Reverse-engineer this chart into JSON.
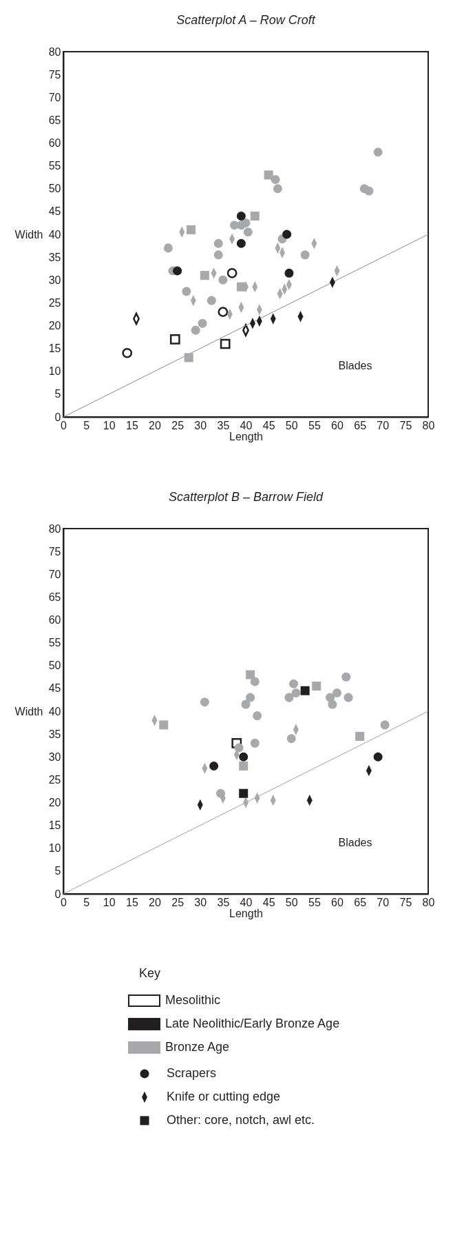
{
  "chart_data": [
    {
      "type": "scatter",
      "title": "Scatterplot A – Row Croft",
      "xlabel": "Length",
      "ylabel": "Width",
      "xlim": [
        0,
        80
      ],
      "ylim": [
        0,
        80
      ],
      "xticks": [
        0,
        5,
        10,
        15,
        20,
        25,
        30,
        35,
        40,
        45,
        50,
        55,
        60,
        65,
        70,
        75,
        80
      ],
      "yticks": [
        0,
        5,
        10,
        15,
        20,
        25,
        30,
        35,
        40,
        45,
        50,
        55,
        60,
        65,
        70,
        75,
        80
      ],
      "series": [
        {
          "type": "line",
          "color": "#8a8a8a",
          "x": [
            0,
            80
          ],
          "values": [
            0,
            40
          ]
        },
        {
          "marker": "circle",
          "color": "#a7a9ac",
          "x": [
            23,
            24,
            35,
            27,
            32.5,
            30.5,
            29,
            34,
            34,
            37.5,
            39,
            40,
            40.5,
            69,
            46.5,
            47,
            66,
            67,
            48,
            53
          ],
          "values": [
            37,
            32,
            30,
            27.5,
            25.5,
            20.5,
            19,
            38,
            35.5,
            42,
            42,
            42.5,
            40.5,
            58,
            52,
            50,
            50,
            49.5,
            39,
            35.5
          ]
        },
        {
          "marker": "diamond",
          "color": "#a7a9ac",
          "x": [
            26,
            33,
            28.5,
            36.5,
            39,
            37,
            47,
            48,
            55,
            60,
            40,
            42,
            47.5,
            48.5,
            49.5,
            43
          ],
          "values": [
            40.5,
            31.5,
            25.5,
            22.5,
            24,
            39,
            37,
            36,
            38,
            32,
            28.5,
            28.5,
            27,
            28,
            29,
            23.5
          ]
        },
        {
          "marker": "square",
          "color": "#a7a9ac",
          "x": [
            28,
            31,
            27.5,
            39,
            45,
            42
          ],
          "values": [
            41,
            31,
            13,
            28.5,
            53,
            44
          ]
        },
        {
          "marker": "circle",
          "color": "#231f20",
          "x": [
            25,
            39,
            39,
            49,
            49.5
          ],
          "values": [
            32,
            38,
            44,
            40,
            31.5
          ]
        },
        {
          "marker": "diamond",
          "color": "#231f20",
          "x": [
            59,
            41.5,
            43,
            46,
            52
          ],
          "values": [
            29.5,
            20.5,
            21,
            21.5,
            22
          ]
        },
        {
          "marker": "circle",
          "color": "#ffffff",
          "x": [
            14,
            37,
            35
          ],
          "values": [
            14,
            31.5,
            23
          ]
        },
        {
          "marker": "diamond",
          "color": "#ffffff",
          "x": [
            16,
            40
          ],
          "values": [
            21.5,
            19
          ]
        },
        {
          "marker": "square",
          "color": "#ffffff",
          "x": [
            24.5,
            35.5
          ],
          "values": [
            17,
            16
          ]
        }
      ],
      "annotations": [
        "Blades"
      ]
    },
    {
      "type": "scatter",
      "title": "Scatterplot B – Barrow Field",
      "xlabel": "Length",
      "ylabel": "Width",
      "xlim": [
        0,
        80
      ],
      "ylim": [
        0,
        80
      ],
      "xticks": [
        0,
        5,
        10,
        15,
        20,
        25,
        30,
        35,
        40,
        45,
        50,
        55,
        60,
        65,
        70,
        75,
        80
      ],
      "yticks": [
        0,
        5,
        10,
        15,
        20,
        25,
        30,
        35,
        40,
        45,
        50,
        55,
        60,
        65,
        70,
        75,
        80
      ],
      "series": [
        {
          "type": "line",
          "color": "#a0a0a0",
          "x": [
            0,
            80
          ],
          "values": [
            0,
            40
          ]
        },
        {
          "marker": "circle",
          "color": "#a7a9ac",
          "x": [
            31,
            38.5,
            34.5,
            42,
            41,
            40,
            42.5,
            50.5,
            51,
            49.5,
            62,
            60,
            58.5,
            59,
            62.5,
            50,
            42,
            70.5
          ],
          "values": [
            42,
            32,
            22,
            46.5,
            43,
            41.5,
            39,
            46,
            44,
            43,
            47.5,
            44,
            43,
            41.5,
            43,
            34,
            33,
            37
          ]
        },
        {
          "marker": "diamond",
          "color": "#a7a9ac",
          "x": [
            20,
            38,
            31,
            35,
            51,
            40,
            42.5,
            46
          ],
          "values": [
            38,
            30.5,
            27.5,
            21,
            36,
            20,
            21,
            20.5
          ]
        },
        {
          "marker": "square",
          "color": "#a7a9ac",
          "x": [
            22,
            41,
            55.5,
            65,
            39.5
          ],
          "values": [
            37,
            48,
            45.5,
            34.5,
            28
          ]
        },
        {
          "marker": "circle",
          "color": "#231f20",
          "x": [
            39.5,
            33,
            69
          ],
          "values": [
            30,
            28,
            30
          ]
        },
        {
          "marker": "diamond",
          "color": "#231f20",
          "x": [
            30,
            67,
            54
          ],
          "values": [
            19.5,
            27,
            20.5
          ]
        },
        {
          "marker": "square",
          "color": "#231f20",
          "x": [
            53,
            39.5
          ],
          "values": [
            44.5,
            22
          ]
        },
        {
          "marker": "square",
          "color": "#ffffff",
          "x": [
            38
          ],
          "values": [
            33
          ]
        }
      ],
      "annotations": [
        "Blades"
      ]
    },
    {
      "type": "other",
      "title": "Key",
      "series": [
        {
          "name": "Mesolithic",
          "color": "#ffffff"
        },
        {
          "name": "Late Neolithic/Early Bronze Age",
          "color": "#231f20"
        },
        {
          "name": "Bronze Age",
          "color": "#a7a9ac"
        },
        {
          "name": "Scrapers",
          "color": "#231f20",
          "marker": "circle"
        },
        {
          "name": "Knife or cutting edge",
          "color": "#231f20",
          "marker": "diamond"
        },
        {
          "name": "Other:  core, notch, awl etc.",
          "color": "#231f20",
          "marker": "square"
        }
      ]
    }
  ]
}
